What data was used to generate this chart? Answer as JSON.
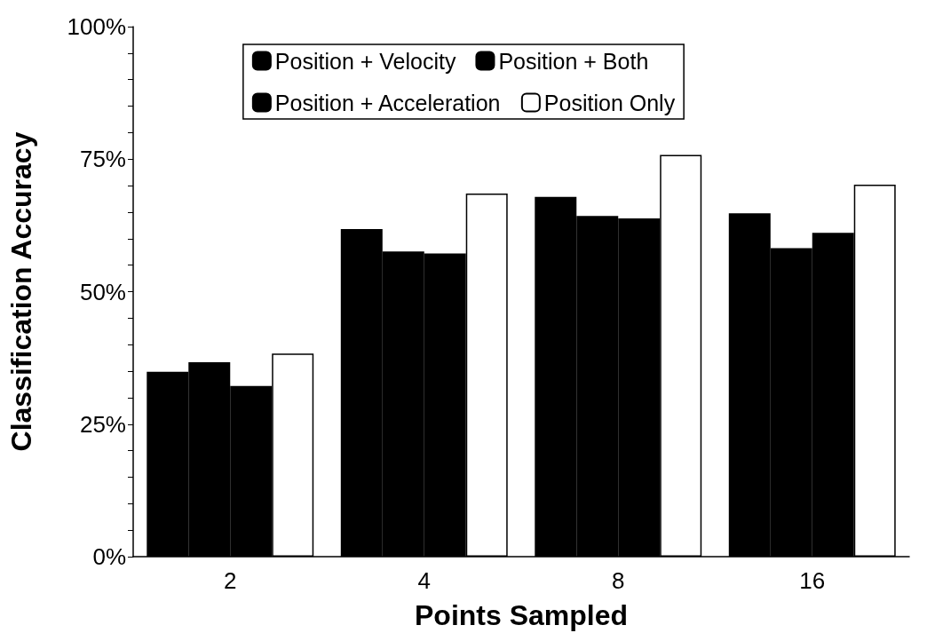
{
  "chart_data": {
    "type": "bar",
    "xlabel": "Points Sampled",
    "ylabel": "Classification Accuracy",
    "categories": [
      "2",
      "4",
      "8",
      "16"
    ],
    "series": [
      {
        "name": "Position + Velocity",
        "color": "#000000",
        "values": [
          34.9,
          61.8,
          67.9,
          64.8
        ]
      },
      {
        "name": "Position + Acceleration",
        "color": "#000000",
        "values": [
          36.7,
          57.6,
          64.3,
          58.2
        ]
      },
      {
        "name": "Position + Both",
        "color": "#000000",
        "values": [
          32.2,
          57.2,
          63.8,
          61.1
        ]
      },
      {
        "name": "Position Only",
        "color": "#ffffff",
        "values": [
          38.3,
          68.5,
          75.8,
          70.2
        ]
      }
    ],
    "ylim": [
      0,
      100
    ],
    "yticks": [
      {
        "value": 0,
        "label": "0%"
      },
      {
        "value": 5,
        "label": null
      },
      {
        "value": 10,
        "label": null
      },
      {
        "value": 15,
        "label": null
      },
      {
        "value": 20,
        "label": null
      },
      {
        "value": 25,
        "label": "25%"
      },
      {
        "value": 30,
        "label": null
      },
      {
        "value": 35,
        "label": null
      },
      {
        "value": 40,
        "label": null
      },
      {
        "value": 45,
        "label": null
      },
      {
        "value": 50,
        "label": "50%"
      },
      {
        "value": 55,
        "label": null
      },
      {
        "value": 60,
        "label": null
      },
      {
        "value": 65,
        "label": null
      },
      {
        "value": 70,
        "label": null
      },
      {
        "value": 75,
        "label": "75%"
      },
      {
        "value": 80,
        "label": null
      },
      {
        "value": 85,
        "label": null
      },
      {
        "value": 90,
        "label": null
      },
      {
        "value": 95,
        "label": null
      },
      {
        "value": 100,
        "label": "100%"
      }
    ],
    "legend": "top"
  }
}
